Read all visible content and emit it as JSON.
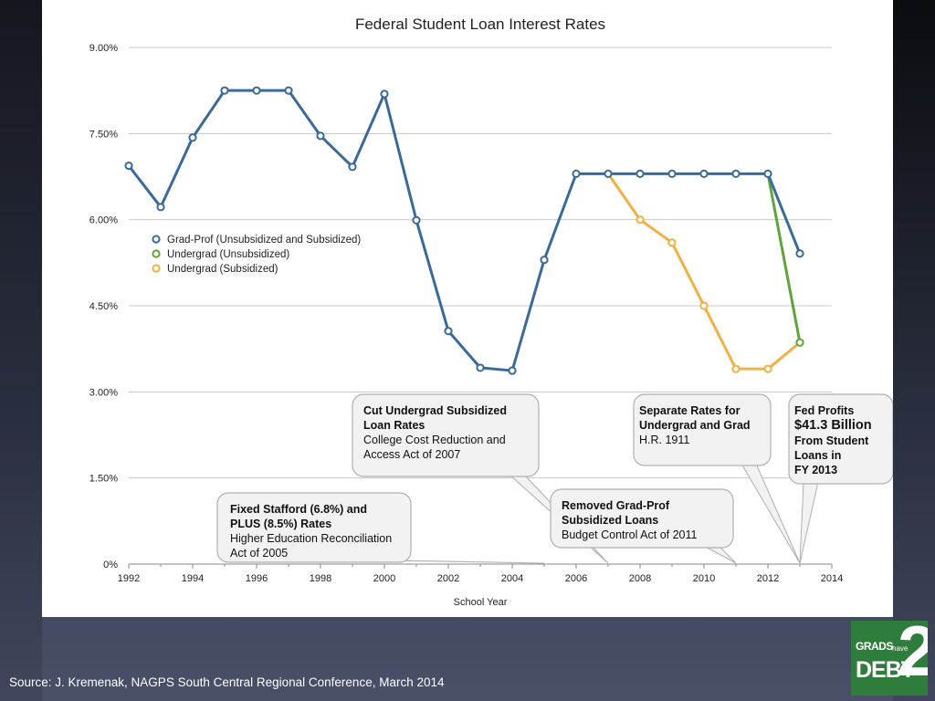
{
  "chart_data": {
    "type": "line",
    "title": "Federal Student Loan Interest Rates",
    "xlabel": "School Year",
    "ylabel": "",
    "xlim": [
      1992,
      2014
    ],
    "ylim": [
      0,
      9
    ],
    "x_ticks": [
      "1992",
      "1994",
      "1996",
      "1998",
      "2000",
      "2002",
      "2004",
      "2006",
      "2008",
      "2010",
      "2012",
      "2014"
    ],
    "y_ticks": [
      {
        "value": 0,
        "label": "0%"
      },
      {
        "value": 1.5,
        "label": "1.50%"
      },
      {
        "value": 3.0,
        "label": "3.00%"
      },
      {
        "value": 4.5,
        "label": "4.50%"
      },
      {
        "value": 6.0,
        "label": "6.00%"
      },
      {
        "value": 7.5,
        "label": "7.50%"
      },
      {
        "value": 9.0,
        "label": "9.00%"
      }
    ],
    "grid": true,
    "legend_position": "left",
    "series": [
      {
        "name": "Grad-Prof (Unsubsidized and Subsidized)",
        "color": "#3a6a9a",
        "x": [
          1992,
          1993,
          1994,
          1995,
          1996,
          1997,
          1998,
          1999,
          2000,
          2001,
          2002,
          2003,
          2004,
          2005,
          2006,
          2007,
          2008,
          2009,
          2010,
          2011,
          2012,
          2013
        ],
        "y": [
          6.94,
          6.22,
          7.43,
          8.25,
          8.25,
          8.25,
          7.46,
          6.92,
          8.19,
          5.99,
          4.06,
          3.42,
          3.37,
          5.3,
          6.8,
          6.8,
          6.8,
          6.8,
          6.8,
          6.8,
          6.8,
          5.41
        ]
      },
      {
        "name": "Undergrad (Unsubsidized)",
        "color": "#5fa33a",
        "x": [
          2012,
          2013
        ],
        "y": [
          6.8,
          3.86
        ]
      },
      {
        "name": "Undergrad (Subsidized)",
        "color": "#f0b042",
        "x": [
          2007,
          2008,
          2009,
          2010,
          2011,
          2012,
          2013
        ],
        "y": [
          6.8,
          6.0,
          5.6,
          4.5,
          3.4,
          3.4,
          3.86
        ]
      }
    ],
    "annotations": [
      {
        "lines": [
          {
            "text": "Fixed Stafford (6.8%) and",
            "style": "bold"
          },
          {
            "text": "PLUS (8.5%) Rates",
            "style": "bold"
          },
          {
            "text": "Higher Education Reconciliation",
            "style": "normal"
          },
          {
            "text": "Act of 2005",
            "style": "normal"
          }
        ],
        "points_to_year": 2005
      },
      {
        "lines": [
          {
            "text": "Cut Undergrad Subsidized",
            "style": "bold"
          },
          {
            "text": "Loan Rates",
            "style": "bold"
          },
          {
            "text": "College Cost Reduction and",
            "style": "normal"
          },
          {
            "text": "Access Act of 2007",
            "style": "normal"
          }
        ],
        "points_to_year": 2007
      },
      {
        "lines": [
          {
            "text": "Removed Grad-Prof",
            "style": "bold"
          },
          {
            "text": "Subsidized Loans",
            "style": "bold"
          },
          {
            "text": "Budget Control Act of 2011",
            "style": "normal"
          }
        ],
        "points_to_year": 2011
      },
      {
        "lines": [
          {
            "text": "Separate Rates for",
            "style": "bold"
          },
          {
            "text": "Undergrad and Grad",
            "style": "bold"
          },
          {
            "text": "H.R. 1911",
            "style": "normal"
          }
        ],
        "points_to_year": 2013
      },
      {
        "lines": [
          {
            "text": "Fed Profits",
            "style": "bold"
          },
          {
            "text": "$41.3 Billion",
            "style": "big"
          },
          {
            "text": "From Student",
            "style": "bold"
          },
          {
            "text": "Loans in",
            "style": "bold"
          },
          {
            "text": "FY 2013",
            "style": "bold"
          }
        ],
        "points_to_year": 2013
      }
    ]
  },
  "footer": {
    "source": "Source: J. Kremenak, NAGPS South Central Regional Conference, March 2014"
  },
  "logo": {
    "grads": "GRADS",
    "have": "have",
    "debt": "DEBT",
    "two": "2"
  }
}
